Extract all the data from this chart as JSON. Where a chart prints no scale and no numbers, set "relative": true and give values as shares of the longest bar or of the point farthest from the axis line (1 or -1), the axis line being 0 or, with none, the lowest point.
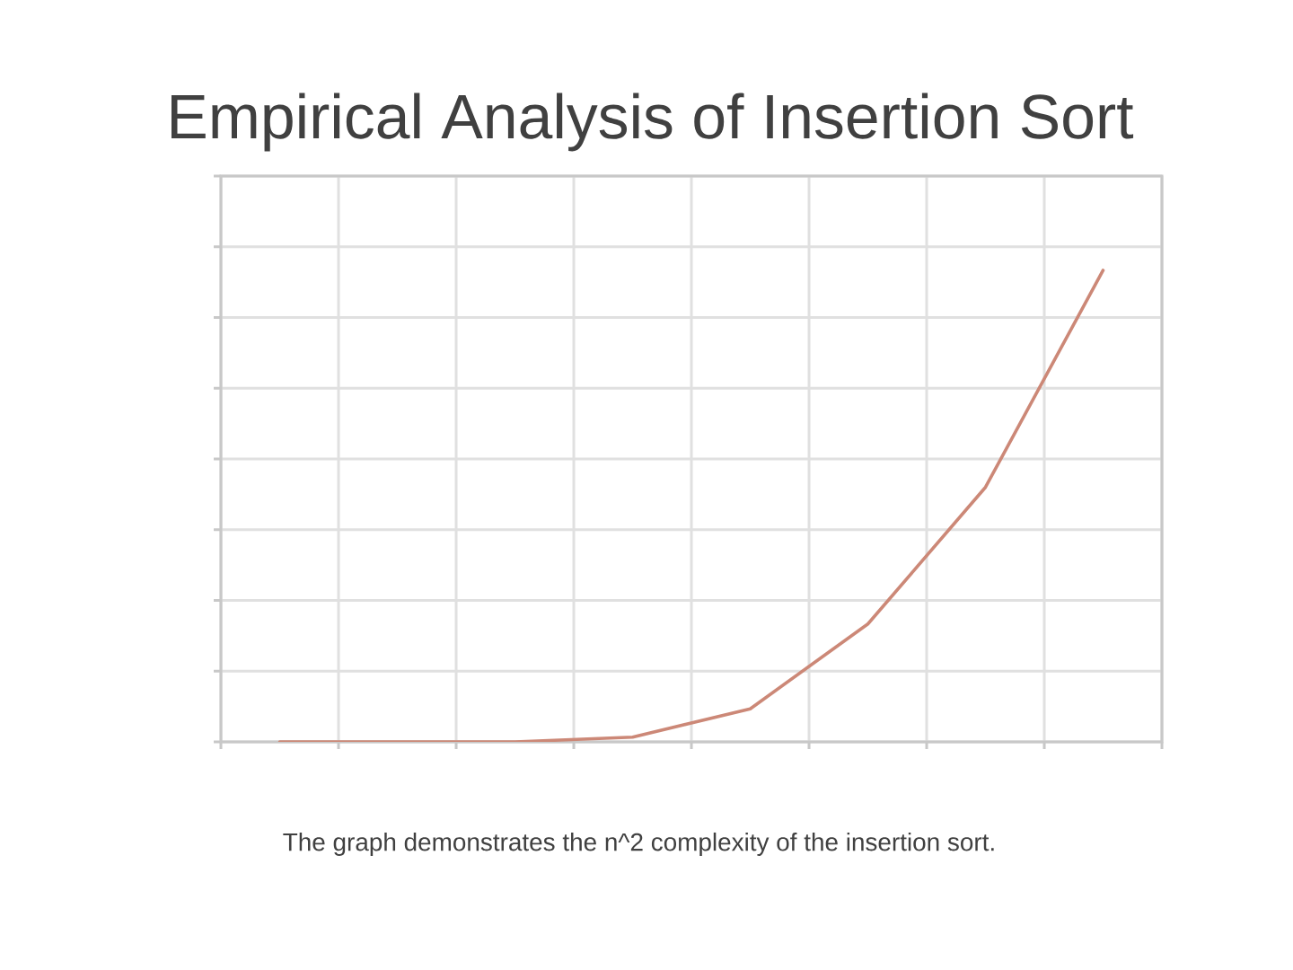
{
  "chart_data": {
    "type": "line",
    "title": "Empirical Analysis of Insertion Sort",
    "categories": [
      null,
      null,
      null,
      null,
      null,
      null,
      null,
      null
    ],
    "values": [
      0,
      0,
      0,
      0.01,
      0.07,
      0.25,
      0.54,
      1
    ],
    "color": "#cc8877",
    "relative": true,
    "grid": true,
    "annotations": [
      "The graph demonstrates the n^2 complexity of the insertion sort."
    ]
  }
}
